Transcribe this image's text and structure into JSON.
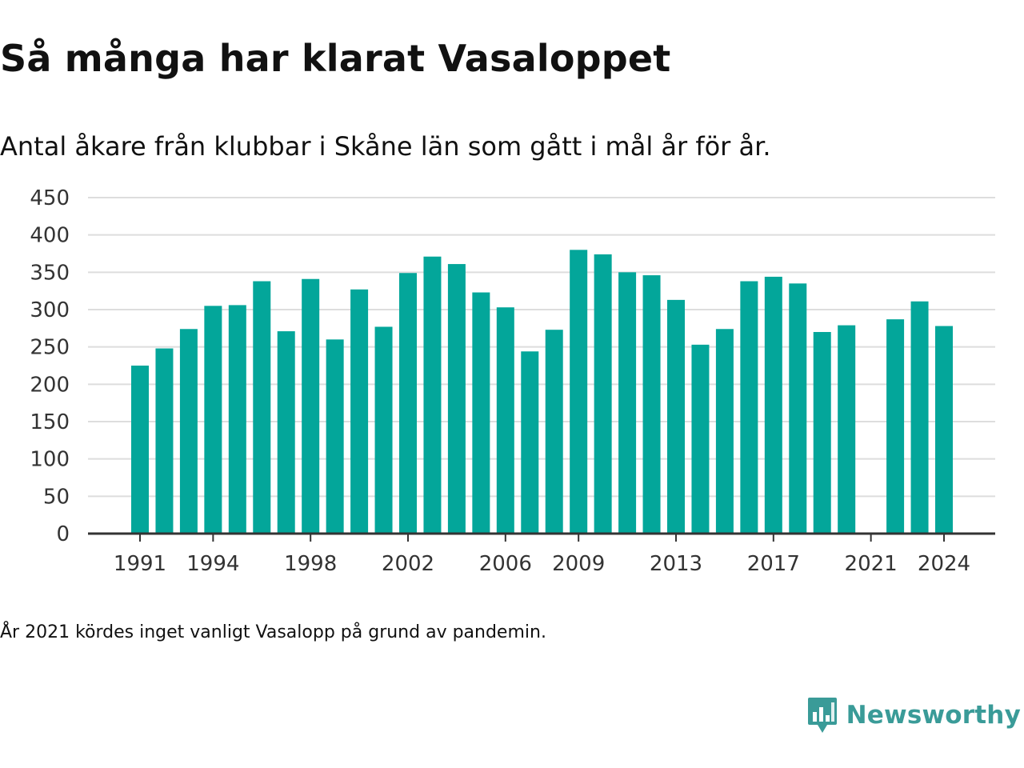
{
  "title": "Så många har klarat Vasaloppet",
  "subtitle": "Antal åkare från klubbar i Skåne län som gått i mål år för år.",
  "note": "År 2021 kördes inget vanligt Vasalopp på grund av pandemin.",
  "brand": {
    "name": "Newsworthy",
    "color": "#3a9b98",
    "icon": "newsworthy-logo-icon"
  },
  "colors": {
    "bar": "#03a69a",
    "grid": "#dddddd",
    "axis": "#333333"
  },
  "chart_data": {
    "type": "bar",
    "categories": [
      "1991",
      "1992",
      "1993",
      "1994",
      "1995",
      "1996",
      "1997",
      "1998",
      "1999",
      "2000",
      "2001",
      "2002",
      "2003",
      "2004",
      "2005",
      "2006",
      "2007",
      "2008",
      "2009",
      "2010",
      "2011",
      "2012",
      "2013",
      "2014",
      "2015",
      "2016",
      "2017",
      "2018",
      "2019",
      "2020",
      "2021",
      "2022",
      "2023",
      "2024"
    ],
    "values": [
      225,
      248,
      274,
      305,
      306,
      338,
      271,
      341,
      260,
      327,
      277,
      349,
      371,
      361,
      323,
      303,
      244,
      273,
      380,
      374,
      350,
      346,
      313,
      253,
      274,
      338,
      344,
      335,
      270,
      279,
      null,
      287,
      311,
      278
    ],
    "x_tick_labels": [
      "1991",
      "1994",
      "1998",
      "2002",
      "2006",
      "2009",
      "2013",
      "2017",
      "2021",
      "2024"
    ],
    "y_ticks": [
      0,
      50,
      100,
      150,
      200,
      250,
      300,
      350,
      400,
      450
    ],
    "ylim": [
      0,
      450
    ],
    "grid": true,
    "legend": "none",
    "title": "Så många har klarat Vasaloppet",
    "subtitle": "Antal åkare från klubbar i Skåne län som gått i mål år för år.",
    "xlabel": "",
    "ylabel": ""
  }
}
